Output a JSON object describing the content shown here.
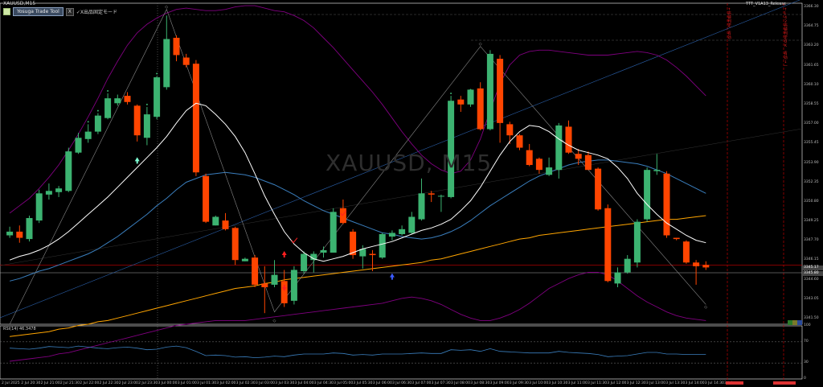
{
  "chart_title": "XAUUSD,M15",
  "watermark": "XAUUSD, M15",
  "toolbar": {
    "button_label": "Yosuga Trade Tool",
    "close_label": "X",
    "mode_label": "✓X出品固定モード"
  },
  "indicator_name": "ТТТ_V1A13_Release",
  "rsi_label": "RSI(14) 46.3478",
  "price_axis": {
    "labels": [
      "3366.30",
      "3364.75",
      "3363.20",
      "3361.65",
      "3360.10",
      "3358.55",
      "3357.00",
      "3355.45",
      "3353.90",
      "3352.35",
      "3350.80",
      "3349.25",
      "3347.70",
      "3346.15",
      "3344.60",
      "3343.05",
      "3341.50"
    ],
    "current_price": "3345.17",
    "ref_price": "3345.80"
  },
  "rsi_axis": [
    "100",
    "70",
    "30",
    "0"
  ],
  "time_axis": [
    "2 Jul 2025",
    "2 Jul 20:30",
    "2 Jul 21:00",
    "2 Jul 21:30",
    "2 Jul 22:00",
    "2 Jul 22:30",
    "2 Jul 23:00",
    "2 Jul 23:30",
    "3 Jul 00:00",
    "3 Jul 01:00",
    "3 Jul 01:30",
    "3 Jul 02:00",
    "3 Jul 02:30",
    "3 Jul 03:00",
    "3 Jul 03:30",
    "3 Jul 04:00",
    "3 Jul 04:30",
    "3 Jul 05:00",
    "3 Jul 05:30",
    "3 Jul 06:00",
    "3 Jul 06:30",
    "3 Jul 07:00",
    "3 Jul 07:30",
    "3 Jul 08:00",
    "3 Jul 08:30",
    "3 Jul 09:00",
    "3 Jul 09:30",
    "3 Jul 10:00",
    "3 Jul 10:30",
    "3 Jul 11:00",
    "3 Jul 11:30",
    "3 Jul 12:00",
    "3 Jul 12:30",
    "3 Jul 13:00",
    "3 Jul 13:30",
    "3 Jul 14:00",
    "3 Jul 14:30",
    "3 Jul"
  ],
  "side_texts": [
    "↑ 売値判定_有効",
    "↑ 1.42売値判定OK_有効 ↓ 一"
  ],
  "colors": {
    "bull": "#3cb371",
    "bear": "#ff4500",
    "bb": "#800080",
    "fast_ma": "#ffffff",
    "mid_ma": "#3a7ebd",
    "slow_ma": "#ffa500",
    "rsi": "#3a7ebd",
    "marker_red": "#ff0000"
  },
  "chart_data": {
    "type": "candlestick",
    "title": "XAUUSD,M15",
    "ylim": [
      3341.0,
      3367.0
    ],
    "candles": [
      [
        3348.2,
        3348.9,
        3348.0,
        3348.5
      ],
      [
        3348.5,
        3349.0,
        3347.6,
        3348.0
      ],
      [
        3347.9,
        3349.8,
        3347.7,
        3349.6
      ],
      [
        3349.4,
        3351.9,
        3349.2,
        3351.6
      ],
      [
        3351.5,
        3352.4,
        3351.1,
        3351.8
      ],
      [
        3351.7,
        3352.2,
        3351.3,
        3352.0
      ],
      [
        3351.8,
        3355.3,
        3351.7,
        3355.0
      ],
      [
        3354.9,
        3356.5,
        3354.8,
        3356.1
      ],
      [
        3356.0,
        3357.2,
        3355.7,
        3356.6
      ],
      [
        3356.6,
        3358.1,
        3356.4,
        3357.9
      ],
      [
        3357.7,
        3359.7,
        3357.6,
        3359.3
      ],
      [
        3358.9,
        3359.6,
        3358.7,
        3359.3
      ],
      [
        3359.5,
        3359.8,
        3358.8,
        3359.0
      ],
      [
        3358.7,
        3358.8,
        3355.8,
        3356.3
      ],
      [
        3356.1,
        3358.6,
        3355.5,
        3358.0
      ],
      [
        3357.8,
        3361.1,
        3357.6,
        3361.0
      ],
      [
        3360.2,
        3366.0,
        3360.0,
        3364.1
      ],
      [
        3364.2,
        3364.4,
        3362.3,
        3362.8
      ],
      [
        3362.6,
        3362.9,
        3361.8,
        3362.0
      ],
      [
        3362.1,
        3362.4,
        3353.0,
        3353.3
      ],
      [
        3353.0,
        3353.2,
        3349.2,
        3349.3
      ],
      [
        3349.0,
        3349.8,
        3349.0,
        3349.7
      ],
      [
        3349.4,
        3350.0,
        3348.6,
        3348.7
      ],
      [
        3348.8,
        3348.9,
        3345.8,
        3346.2
      ],
      [
        3346.1,
        3346.4,
        3346.1,
        3346.3
      ],
      [
        3346.4,
        3346.6,
        3344.0,
        3344.2
      ],
      [
        3344.3,
        3345.7,
        3341.9,
        3344.0
      ],
      [
        3344.2,
        3346.2,
        3344.0,
        3345.0
      ],
      [
        3344.5,
        3345.4,
        3342.4,
        3342.7
      ],
      [
        3342.9,
        3345.7,
        3342.6,
        3345.4
      ],
      [
        3345.3,
        3346.9,
        3345.1,
        3346.7
      ],
      [
        3346.2,
        3346.9,
        3345.2,
        3346.7
      ],
      [
        3346.8,
        3347.3,
        3346.4,
        3347.0
      ],
      [
        3346.8,
        3350.4,
        3346.8,
        3350.1
      ],
      [
        3350.4,
        3351.1,
        3349.1,
        3349.2
      ],
      [
        3348.5,
        3348.7,
        3346.3,
        3346.6
      ],
      [
        3346.5,
        3347.4,
        3345.5,
        3347.1
      ],
      [
        3346.7,
        3347.0,
        3345.3,
        3346.6
      ],
      [
        3346.4,
        3348.4,
        3346.3,
        3348.3
      ],
      [
        3348.1,
        3348.6,
        3347.8,
        3348.4
      ],
      [
        3348.3,
        3349.0,
        3348.2,
        3348.7
      ],
      [
        3348.4,
        3350.1,
        3348.3,
        3349.7
      ],
      [
        3349.5,
        3352.8,
        3349.4,
        3351.6
      ],
      [
        3351.6,
        3351.8,
        3350.9,
        3351.5
      ],
      [
        3351.4,
        3351.5,
        3350.1,
        3351.4
      ],
      [
        3351.3,
        3359.5,
        3351.2,
        3359.1
      ],
      [
        3359.2,
        3359.5,
        3358.2,
        3358.8
      ],
      [
        3358.8,
        3359.8,
        3358.6,
        3360.0
      ],
      [
        3360.1,
        3360.6,
        3356.7,
        3356.8
      ],
      [
        3356.8,
        3363.2,
        3356.7,
        3362.9
      ],
      [
        3362.5,
        3362.8,
        3355.7,
        3357.3
      ],
      [
        3357.2,
        3357.4,
        3355.6,
        3356.3
      ],
      [
        3356.3,
        3356.4,
        3355.1,
        3355.3
      ],
      [
        3355.1,
        3355.6,
        3353.8,
        3353.9
      ],
      [
        3354.4,
        3354.5,
        3353.2,
        3353.5
      ],
      [
        3353.1,
        3354.5,
        3353.0,
        3353.7
      ],
      [
        3353.5,
        3357.3,
        3352.8,
        3357.1
      ],
      [
        3357.0,
        3357.5,
        3354.8,
        3354.9
      ],
      [
        3354.8,
        3355.2,
        3353.9,
        3354.4
      ],
      [
        3354.7,
        3355.0,
        3353.5,
        3353.5
      ],
      [
        3353.6,
        3353.7,
        3350.2,
        3350.3
      ],
      [
        3350.4,
        3350.7,
        3344.4,
        3344.5
      ],
      [
        3344.3,
        3345.6,
        3344.0,
        3345.2
      ],
      [
        3345.2,
        3346.6,
        3345.1,
        3346.3
      ],
      [
        3346.0,
        3349.5,
        3345.6,
        3349.3
      ],
      [
        3349.5,
        3353.7,
        3349.3,
        3353.5
      ],
      [
        3353.4,
        3354.8,
        3353.1,
        3353.5
      ],
      [
        3353.2,
        3353.4,
        3348.0,
        3348.2
      ],
      [
        3348.0,
        3348.0,
        3347.8,
        3347.9
      ],
      [
        3347.7,
        3347.8,
        3345.9,
        3346.0
      ],
      [
        3346.0,
        3346.2,
        3344.2,
        3345.7
      ],
      [
        3345.8,
        3346.1,
        3345.4,
        3345.6
      ]
    ],
    "fast_ma": [
      3346.2,
      3346.5,
      3346.7,
      3347.0,
      3347.4,
      3347.9,
      3348.5,
      3349.2,
      3349.9,
      3350.6,
      3351.3,
      3352.1,
      3352.9,
      3353.7,
      3354.5,
      3355.3,
      3356.2,
      3357.3,
      3358.3,
      3358.9,
      3358.7,
      3358.0,
      3357.2,
      3356.2,
      3354.9,
      3353.2,
      3351.4,
      3349.9,
      3348.5,
      3347.5,
      3346.8,
      3346.3,
      3346.1,
      3346.3,
      3346.5,
      3346.8,
      3347.1,
      3347.3,
      3347.5,
      3347.7,
      3348.0,
      3348.3,
      3348.6,
      3348.8,
      3349.1,
      3349.5,
      3350.2,
      3351.0,
      3352.1,
      3353.4,
      3354.7,
      3355.8,
      3356.6,
      3357.1,
      3357.0,
      3356.6,
      3356.0,
      3355.5,
      3355.1,
      3354.9,
      3354.7,
      3354.4,
      3353.7,
      3352.8,
      3351.6,
      3350.7,
      3349.9,
      3349.2,
      3348.7,
      3348.2,
      3347.8,
      3347.6
    ],
    "mid_ma": [
      3344.5,
      3344.7,
      3345.0,
      3345.3,
      3345.5,
      3345.8,
      3346.1,
      3346.4,
      3346.7,
      3347.1,
      3347.6,
      3348.1,
      3348.7,
      3349.3,
      3349.9,
      3350.6,
      3351.2,
      3351.9,
      3352.5,
      3352.8,
      3353.1,
      3353.2,
      3353.3,
      3353.2,
      3353.1,
      3352.9,
      3352.6,
      3352.3,
      3351.9,
      3351.5,
      3351.0,
      3350.6,
      3350.2,
      3349.9,
      3349.6,
      3349.3,
      3349.0,
      3348.7,
      3348.4,
      3348.3,
      3348.1,
      3348.0,
      3347.9,
      3348.0,
      3348.2,
      3348.5,
      3348.9,
      3349.4,
      3350.0,
      3350.6,
      3351.1,
      3351.6,
      3352.1,
      3352.6,
      3353.0,
      3353.3,
      3353.6,
      3353.9,
      3354.1,
      3354.2,
      3354.3,
      3354.3,
      3354.2,
      3354.1,
      3354.0,
      3353.8,
      3353.5,
      3353.2,
      3352.8,
      3352.4,
      3352.0,
      3351.6
    ],
    "slow_ma": [
      3340.0,
      3340.1,
      3340.2,
      3340.3,
      3340.4,
      3340.6,
      3340.7,
      3340.9,
      3341.0,
      3341.2,
      3341.3,
      3341.5,
      3341.7,
      3341.9,
      3342.1,
      3342.3,
      3342.5,
      3342.7,
      3342.9,
      3343.1,
      3343.3,
      3343.5,
      3343.7,
      3343.9,
      3344.0,
      3344.1,
      3344.3,
      3344.4,
      3344.6,
      3344.7,
      3344.8,
      3344.9,
      3345.0,
      3345.1,
      3345.2,
      3345.3,
      3345.4,
      3345.5,
      3345.6,
      3345.7,
      3345.8,
      3345.9,
      3346.0,
      3346.2,
      3346.3,
      3346.5,
      3346.7,
      3346.9,
      3347.1,
      3347.3,
      3347.5,
      3347.7,
      3347.9,
      3348.0,
      3348.2,
      3348.3,
      3348.4,
      3348.5,
      3348.6,
      3348.7,
      3348.8,
      3348.9,
      3349.0,
      3349.1,
      3349.2,
      3349.3,
      3349.4,
      3349.5,
      3349.5,
      3349.6,
      3349.7,
      3349.8
    ],
    "bb_upper": [
      3350.0,
      3350.6,
      3351.2,
      3352.0,
      3352.9,
      3353.9,
      3355.1,
      3356.4,
      3357.8,
      3359.3,
      3360.9,
      3362.3,
      3363.6,
      3364.6,
      3365.3,
      3365.8,
      3366.2,
      3366.5,
      3366.6,
      3366.5,
      3366.4,
      3366.4,
      3366.5,
      3366.7,
      3366.8,
      3366.8,
      3366.6,
      3366.4,
      3366.3,
      3366.0,
      3365.6,
      3365.0,
      3364.2,
      3363.4,
      3362.5,
      3361.6,
      3360.7,
      3359.8,
      3358.8,
      3357.7,
      3356.6,
      3355.6,
      3354.7,
      3354.0,
      3353.5,
      3353.2,
      3353.4,
      3354.3,
      3356.0,
      3358.3,
      3360.5,
      3362.0,
      3362.8,
      3363.1,
      3363.2,
      3363.2,
      3363.1,
      3363.0,
      3362.9,
      3362.8,
      3362.8,
      3362.8,
      3362.9,
      3363.0,
      3363.1,
      3363.0,
      3362.8,
      3362.4,
      3361.8,
      3361.1,
      3360.3,
      3359.5
    ],
    "bb_lower": [
      3338.0,
      3338.1,
      3338.2,
      3338.3,
      3338.4,
      3338.6,
      3338.7,
      3338.9,
      3339.1,
      3339.3,
      3339.5,
      3339.7,
      3339.9,
      3340.1,
      3340.3,
      3340.5,
      3340.7,
      3340.9,
      3341.0,
      3341.1,
      3341.2,
      3341.3,
      3341.3,
      3341.3,
      3341.3,
      3341.4,
      3341.5,
      3341.6,
      3341.7,
      3341.8,
      3341.9,
      3342.0,
      3342.1,
      3342.2,
      3342.3,
      3342.4,
      3342.5,
      3342.6,
      3342.7,
      3342.9,
      3343.1,
      3343.2,
      3343.1,
      3342.9,
      3342.6,
      3342.2,
      3341.8,
      3341.5,
      3341.3,
      3341.3,
      3341.5,
      3341.8,
      3342.2,
      3342.7,
      3343.3,
      3343.9,
      3344.3,
      3344.7,
      3345.0,
      3345.2,
      3345.2,
      3345.0,
      3344.5,
      3343.9,
      3343.3,
      3342.8,
      3342.4,
      3342.0,
      3341.7,
      3341.5,
      3341.4,
      3341.3
    ],
    "rsi": [
      58,
      57,
      56,
      58,
      61,
      60,
      59,
      62,
      60,
      58,
      57,
      59,
      60,
      58,
      55,
      56,
      60,
      62,
      59,
      52,
      44,
      45,
      44,
      41,
      42,
      40,
      41,
      43,
      42,
      45,
      47,
      47,
      47,
      49,
      48,
      45,
      46,
      45,
      47,
      47,
      47,
      48,
      49,
      48,
      48,
      55,
      54,
      55,
      52,
      57,
      52,
      51,
      50,
      49,
      49,
      49,
      52,
      50,
      49,
      48,
      46,
      42,
      43,
      44,
      47,
      50,
      50,
      47,
      47,
      46,
      46,
      46
    ],
    "zigzag": [
      [
        0,
        3341.0
      ],
      [
        16,
        3366.5
      ],
      [
        27,
        3342.0
      ],
      [
        48,
        3363.5
      ],
      [
        71,
        3342.6
      ]
    ]
  }
}
